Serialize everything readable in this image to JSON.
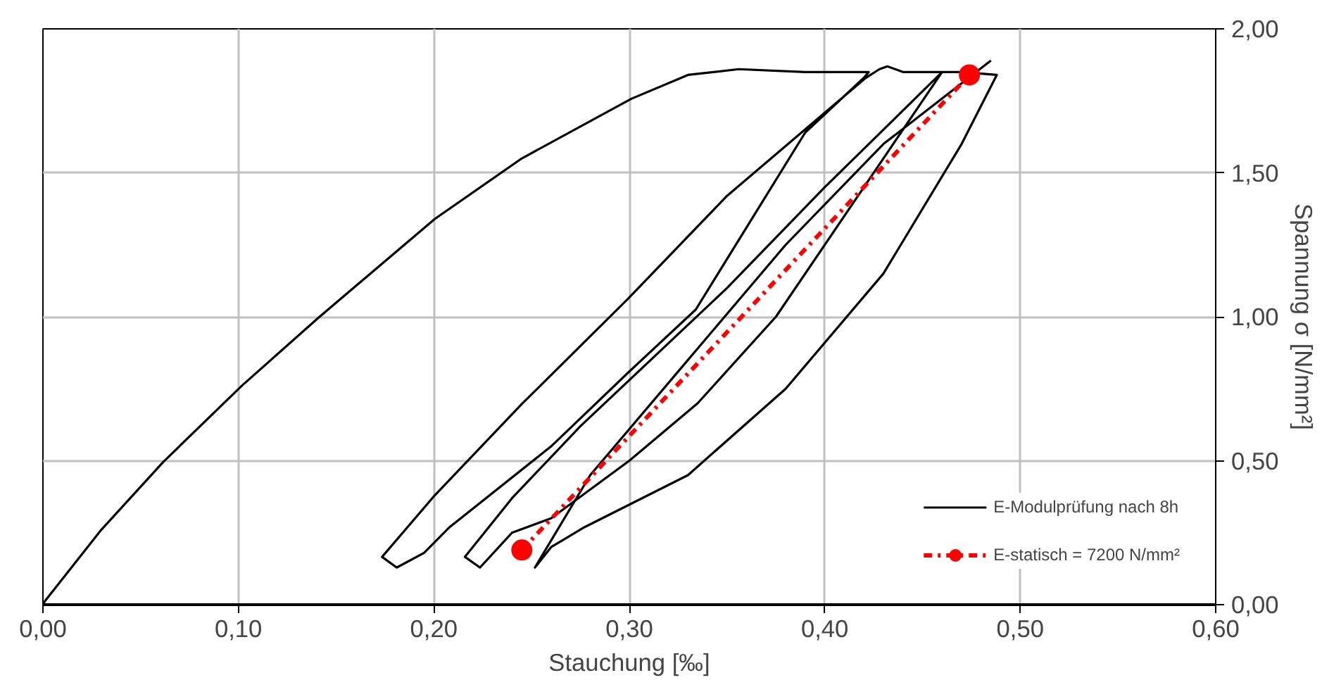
{
  "chart_data": {
    "type": "line",
    "xlabel": "Stauchung [‰]",
    "ylabel": "Spannung σ [N/mm²]",
    "xlim": [
      0,
      0.6
    ],
    "ylim": [
      0,
      2.0
    ],
    "xticks": [
      {
        "value": 0,
        "label": "0,00"
      },
      {
        "value": 0.1,
        "label": "0,10"
      },
      {
        "value": 0.2,
        "label": "0,20"
      },
      {
        "value": 0.3,
        "label": "0,30"
      },
      {
        "value": 0.4,
        "label": "0,40"
      },
      {
        "value": 0.5,
        "label": "0,50"
      },
      {
        "value": 0.6,
        "label": "0,60"
      }
    ],
    "yticks": [
      {
        "value": 0,
        "label": "0,00"
      },
      {
        "value": 0.5,
        "label": "0,50"
      },
      {
        "value": 1.0,
        "label": "1,00"
      },
      {
        "value": 1.5,
        "label": "1,50"
      },
      {
        "value": 2.0,
        "label": "2,00"
      }
    ],
    "grid": true,
    "legend": "bottom right",
    "series": [
      {
        "name": "E-Modulprüfung nach 8h",
        "color": "#000000",
        "marker": "none",
        "line_style": "solid",
        "x": [
          0,
          0.001,
          0.0297,
          0.0616,
          0.1017,
          0.141,
          0.2005,
          0.245,
          0.301,
          0.33,
          0.356,
          0.39,
          0.4225,
          0.42,
          0.39,
          0.334,
          0.3,
          0.26,
          0.208,
          0.195,
          0.181,
          0.1735,
          0.2005,
          0.245,
          0.299,
          0.35,
          0.421,
          0.428,
          0.432,
          0.44,
          0.46,
          0.43,
          0.375,
          0.335,
          0.3,
          0.26,
          0.24,
          0.2236,
          0.2159,
          0.24,
          0.275,
          0.35,
          0.4,
          0.46,
          0.47,
          0.488,
          0.47,
          0.43,
          0.38,
          0.33,
          0.277,
          0.26,
          0.2517,
          0.28,
          0.33,
          0.38,
          0.43,
          0.485
        ],
        "values": [
          0,
          0.012,
          0.259,
          0.496,
          0.76,
          0.997,
          1.34,
          1.55,
          1.757,
          1.84,
          1.86,
          1.85,
          1.85,
          1.83,
          1.64,
          1.025,
          0.81,
          0.55,
          0.269,
          0.18,
          0.129,
          0.166,
          0.38,
          0.697,
          1.06,
          1.42,
          1.83,
          1.86,
          1.87,
          1.85,
          1.85,
          1.55,
          1.0,
          0.7,
          0.5,
          0.3,
          0.25,
          0.129,
          0.166,
          0.37,
          0.62,
          1.1,
          1.45,
          1.85,
          1.85,
          1.84,
          1.6,
          1.15,
          0.75,
          0.45,
          0.269,
          0.2,
          0.129,
          0.45,
          0.85,
          1.25,
          1.6,
          1.89
        ]
      },
      {
        "name": "E-statisch = 7200 N/mm²",
        "color": "#ff0000",
        "marker": "circle",
        "line_style": "dashed",
        "x": [
          0.245,
          0.474
        ],
        "values": [
          0.19,
          1.84
        ]
      }
    ]
  }
}
